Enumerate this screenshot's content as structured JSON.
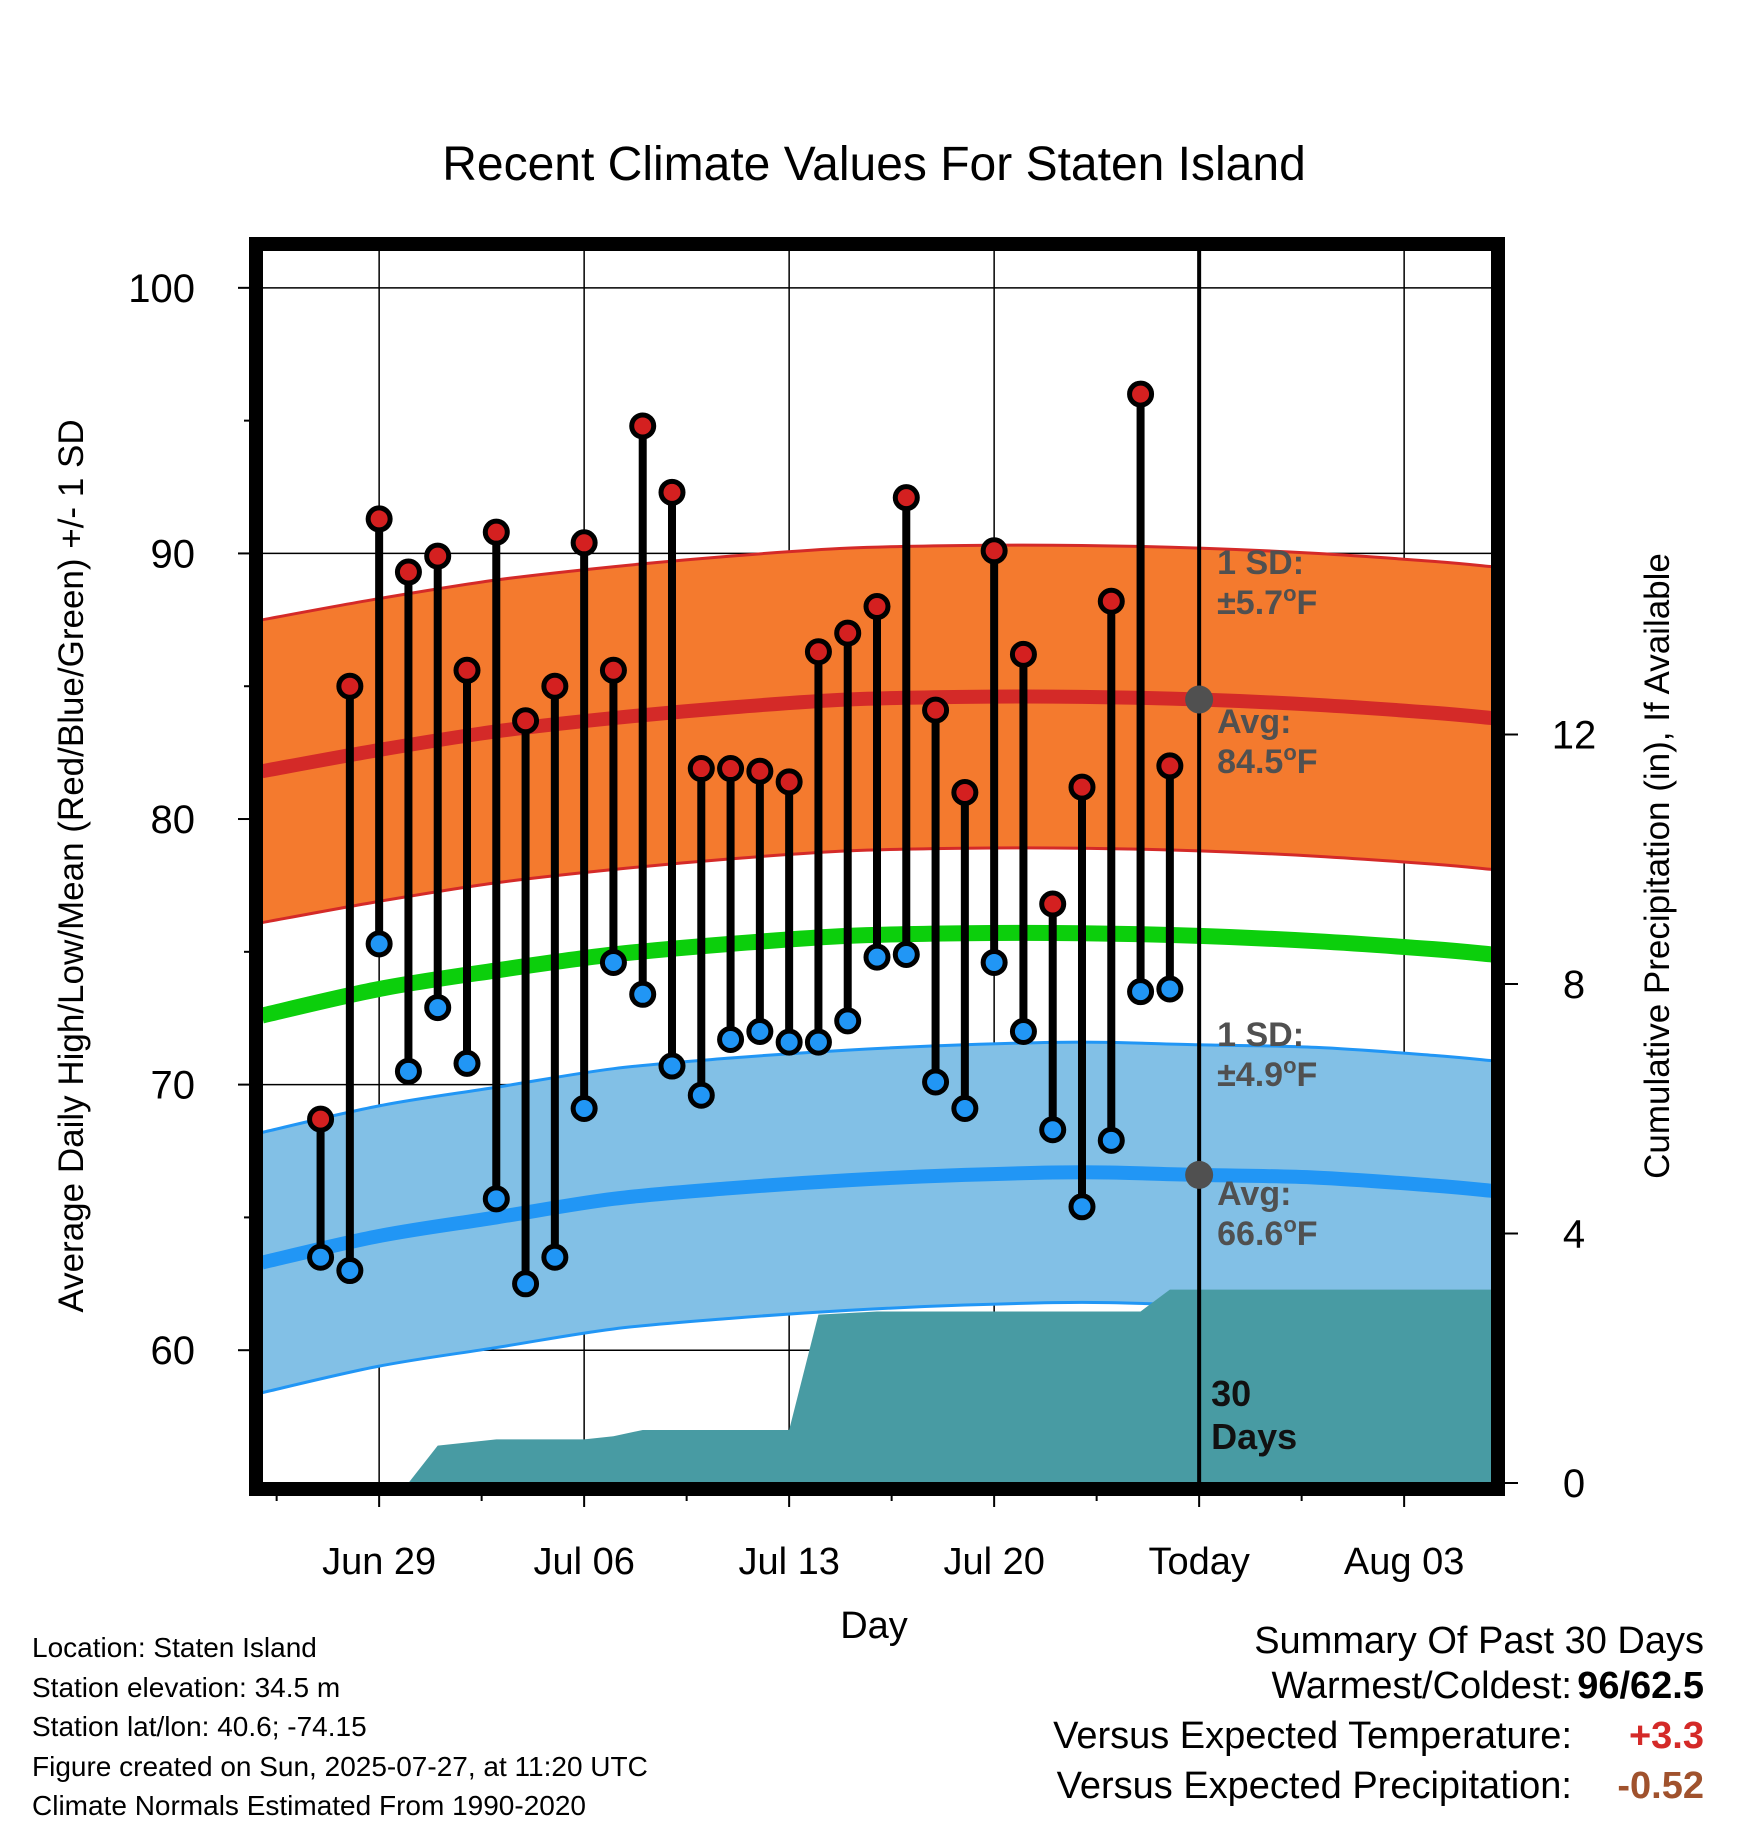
{
  "chart_data": {
    "type": "line",
    "title": "Recent Climate Values For Staten Island",
    "xlabel": "Day",
    "ylabel": "Average Daily High/Low/Mean (Red/Blue/Green) +/- 1 SD",
    "ylabel_right": "Cumulative Precipitation (in), If Available",
    "ylim": [
      55,
      101.5
    ],
    "y_ticks": [
      "100",
      "90",
      "80",
      "70",
      "60"
    ],
    "y_ticks_right": [
      "12",
      "8",
      "4",
      "0"
    ],
    "y2lim": [
      0,
      19.8
    ],
    "x_start": "2025-06-25",
    "x_end": "2025-08-06",
    "x_ticks": [
      {
        "date": "2025-06-29",
        "label": "Jun 29"
      },
      {
        "date": "2025-07-06",
        "label": "Jul 06"
      },
      {
        "date": "2025-07-13",
        "label": "Jul 13"
      },
      {
        "date": "2025-07-20",
        "label": "Jul 20"
      },
      {
        "date": "2025-07-27",
        "label": "Today"
      },
      {
        "date": "2025-08-03",
        "label": "Aug 03"
      }
    ],
    "today": "2025-07-27",
    "today_label": "30\nDays",
    "colors": {
      "high_band": "#f47a2e",
      "high_avg": "#d42a28",
      "low_band": "#82c0e6",
      "low_avg": "#2196f5",
      "mean_avg": "#0ccf0c",
      "precip": "#489ba3",
      "annotation": "#505050",
      "high_marker": "#d42020",
      "low_marker": "#2196f5"
    },
    "dates": [
      "2025-06-27",
      "2025-06-28",
      "2025-06-29",
      "2025-06-30",
      "2025-07-01",
      "2025-07-02",
      "2025-07-03",
      "2025-07-04",
      "2025-07-05",
      "2025-07-06",
      "2025-07-07",
      "2025-07-08",
      "2025-07-09",
      "2025-07-10",
      "2025-07-11",
      "2025-07-12",
      "2025-07-13",
      "2025-07-14",
      "2025-07-15",
      "2025-07-16",
      "2025-07-17",
      "2025-07-18",
      "2025-07-19",
      "2025-07-20",
      "2025-07-21",
      "2025-07-22",
      "2025-07-23",
      "2025-07-24",
      "2025-07-25",
      "2025-07-26"
    ],
    "series": [
      {
        "name": "High",
        "values": [
          68.7,
          85,
          91.3,
          89.3,
          89.9,
          85.6,
          90.8,
          83.7,
          85,
          90.4,
          85.6,
          94.8,
          92.3,
          81.9,
          81.9,
          81.8,
          81.4,
          86.3,
          87,
          88,
          92.1,
          84.1,
          81,
          90.1,
          86.2,
          76.8,
          81.2,
          88.2,
          96,
          82
        ]
      },
      {
        "name": "Low",
        "values": [
          63.5,
          63,
          75.3,
          70.5,
          72.9,
          70.8,
          65.7,
          62.5,
          63.5,
          69.1,
          74.6,
          73.4,
          70.7,
          69.6,
          71.7,
          72,
          71.6,
          71.6,
          72.4,
          74.8,
          74.9,
          70.1,
          69.1,
          74.6,
          72,
          68.3,
          65.4,
          67.9,
          73.5,
          73.6
        ]
      }
    ],
    "normals": {
      "dates": [
        "2025-06-25",
        "2025-06-29",
        "2025-07-03",
        "2025-07-07",
        "2025-07-11",
        "2025-07-15",
        "2025-07-19",
        "2025-07-23",
        "2025-07-27",
        "2025-07-31",
        "2025-08-04",
        "2025-08-06"
      ],
      "high_avg": [
        81.8,
        82.6,
        83.3,
        83.8,
        84.2,
        84.5,
        84.6,
        84.6,
        84.5,
        84.3,
        84.0,
        83.8
      ],
      "high_sd": 5.7,
      "low_avg": [
        63.3,
        64.3,
        65.0,
        65.7,
        66.1,
        66.4,
        66.6,
        66.7,
        66.6,
        66.5,
        66.2,
        66.0
      ],
      "low_sd": 4.9,
      "mean_avg": [
        72.6,
        73.6,
        74.3,
        74.9,
        75.3,
        75.6,
        75.7,
        75.7,
        75.6,
        75.4,
        75.1,
        74.9
      ]
    },
    "precipitation": {
      "dates": [
        "2025-06-25",
        "2025-06-30",
        "2025-07-01",
        "2025-07-03",
        "2025-07-06",
        "2025-07-07",
        "2025-07-08",
        "2025-07-09",
        "2025-07-13",
        "2025-07-14",
        "2025-07-16",
        "2025-07-25",
        "2025-07-26",
        "2025-08-06"
      ],
      "cumulative": [
        0,
        0,
        0.6,
        0.7,
        0.7,
        0.75,
        0.85,
        0.85,
        0.85,
        2.7,
        2.75,
        2.75,
        3.1,
        3.1
      ]
    },
    "annotations": {
      "high_sd_label": "1 SD:",
      "high_sd_value": "±5.7",
      "high_avg_label": "Avg:",
      "high_avg_value": "84.5",
      "low_sd_label": "1 SD:",
      "low_sd_value": "±4.9",
      "low_avg_label": "Avg:",
      "low_avg_value": "66.6",
      "unit_super": "o",
      "unit": "F"
    }
  },
  "info": {
    "location": "Location: Staten Island",
    "elevation": "Station elevation: 34.5 m",
    "latlon": "Station lat/lon: 40.6; -74.15",
    "created": "Figure created on Sun, 2025-07-27, at 11:20 UTC",
    "normals": "Climate Normals Estimated From 1990-2020"
  },
  "summary": {
    "title": "Summary Of Past 30 Days",
    "warmest_label": "Warmest/Coldest:",
    "warmest_value": "96",
    "slash": "/",
    "coldest_value": "62.5",
    "temp_label": "Versus Expected Temperature:",
    "temp_value": "+3.3",
    "temp_color": "#d42a28",
    "precip_label": "Versus Expected Precipitation:",
    "precip_value": "-0.52",
    "precip_color": "#a0522d"
  }
}
